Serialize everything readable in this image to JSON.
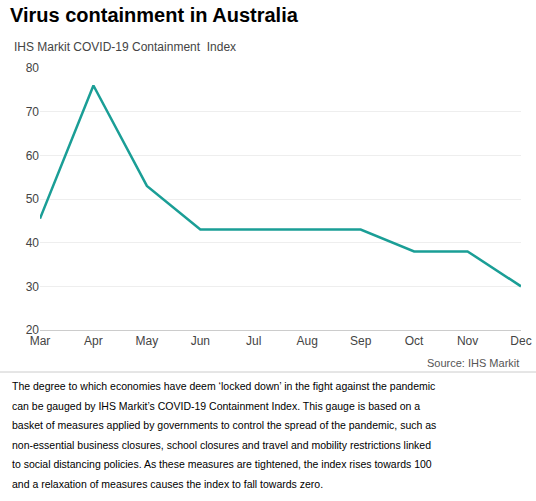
{
  "chart_data": {
    "type": "line",
    "title": "Virus containment in Australia",
    "subtitle": "IHS Markit COVID-19 Containment  Index",
    "source": "Source: IHS Markit",
    "caption": [
      "The degree to which economies have deem ‘locked down’ in the fight against the pandemic",
      "can be gauged by IHS Markit’s COVID-19 Containment Index. This gauge is based on a",
      "basket of measures applied by governments to control the spread of the pandemic, such as",
      "non-essential business closures, school closures and travel and mobility restrictions linked",
      "to social distancing policies. As these measures are tightened, the index rises towards 100",
      "and a relaxation of measures causes the index to fall towards zero."
    ],
    "categories": [
      "Mar",
      "Apr",
      "May",
      "Jun",
      "Jul",
      "Aug",
      "Sep",
      "Oct",
      "Nov",
      "Dec"
    ],
    "values": [
      45.5,
      76.0,
      53.0,
      43.0,
      43.0,
      43.0,
      43.0,
      38.0,
      38.0,
      30.0
    ],
    "color": "#1a9e96",
    "ylim": [
      20,
      80
    ],
    "yticks": [
      20,
      30,
      40,
      50,
      60,
      70,
      80
    ],
    "grid": true
  }
}
